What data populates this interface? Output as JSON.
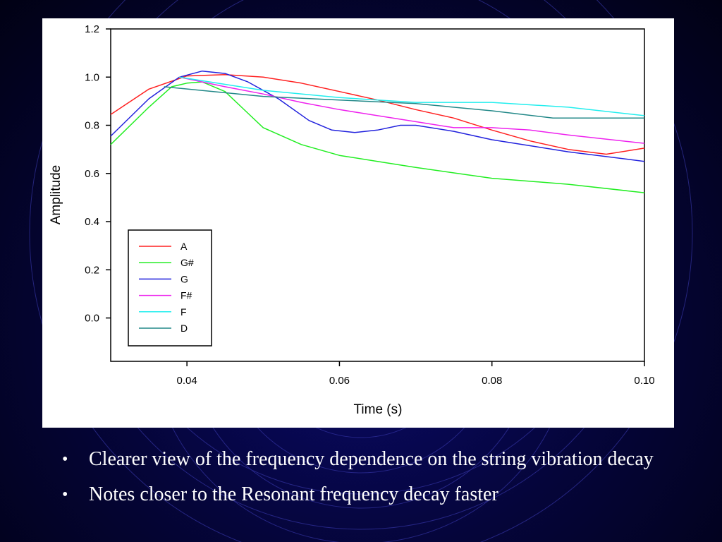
{
  "slide": {
    "bullets": [
      "Clearer view of the frequency dependence on the string vibration decay",
      "Notes closer to the Resonant frequency decay faster"
    ],
    "bullet_symbol": "•"
  },
  "chart_data": {
    "type": "line",
    "title": "",
    "xlabel": "Time (s)",
    "ylabel": "Amplitude",
    "xlim": [
      0.03,
      0.1
    ],
    "ylim": [
      -0.18,
      1.2
    ],
    "xticks": [
      "0.04",
      "0.06",
      "0.08",
      "0.10"
    ],
    "yticks": [
      "0.0",
      "0.2",
      "0.4",
      "0.6",
      "0.8",
      "1.0",
      "1.2"
    ],
    "grid": false,
    "legend": "lower-left",
    "series": [
      {
        "name": "A",
        "color": "#ff2020",
        "x": [
          0.03,
          0.035,
          0.04,
          0.045,
          0.05,
          0.055,
          0.06,
          0.065,
          0.07,
          0.075,
          0.08,
          0.085,
          0.09,
          0.095,
          0.1
        ],
        "y": [
          0.845,
          0.95,
          1.005,
          1.01,
          1.0,
          0.975,
          0.94,
          0.905,
          0.865,
          0.83,
          0.78,
          0.735,
          0.7,
          0.68,
          0.705
        ]
      },
      {
        "name": "G#",
        "color": "#22ee22",
        "x": [
          0.03,
          0.035,
          0.038,
          0.04,
          0.042,
          0.045,
          0.048,
          0.05,
          0.055,
          0.06,
          0.065,
          0.07,
          0.08,
          0.09,
          0.1
        ],
        "y": [
          0.72,
          0.875,
          0.96,
          0.975,
          0.98,
          0.94,
          0.85,
          0.79,
          0.72,
          0.675,
          0.65,
          0.625,
          0.58,
          0.555,
          0.52
        ]
      },
      {
        "name": "G",
        "color": "#2222dd",
        "x": [
          0.03,
          0.035,
          0.039,
          0.042,
          0.045,
          0.048,
          0.052,
          0.056,
          0.059,
          0.062,
          0.065,
          0.068,
          0.07,
          0.075,
          0.08,
          0.085,
          0.09,
          0.1
        ],
        "y": [
          0.755,
          0.91,
          1.0,
          1.025,
          1.015,
          0.98,
          0.91,
          0.82,
          0.78,
          0.77,
          0.78,
          0.8,
          0.8,
          0.775,
          0.74,
          0.715,
          0.69,
          0.65
        ]
      },
      {
        "name": "F#",
        "color": "#ee22ee",
        "x": [
          0.039,
          0.045,
          0.05,
          0.055,
          0.06,
          0.065,
          0.07,
          0.075,
          0.08,
          0.085,
          0.09,
          0.1
        ],
        "y": [
          1.0,
          0.96,
          0.93,
          0.895,
          0.865,
          0.84,
          0.815,
          0.79,
          0.79,
          0.78,
          0.76,
          0.725
        ]
      },
      {
        "name": "F",
        "color": "#22eeee",
        "x": [
          0.039,
          0.045,
          0.05,
          0.06,
          0.07,
          0.08,
          0.09,
          0.1
        ],
        "y": [
          1.0,
          0.97,
          0.945,
          0.915,
          0.895,
          0.895,
          0.875,
          0.84
        ]
      },
      {
        "name": "D",
        "color": "#228888",
        "x": [
          0.037,
          0.045,
          0.05,
          0.06,
          0.07,
          0.08,
          0.088,
          0.1
        ],
        "y": [
          0.96,
          0.935,
          0.92,
          0.905,
          0.89,
          0.86,
          0.83,
          0.83
        ]
      }
    ]
  }
}
